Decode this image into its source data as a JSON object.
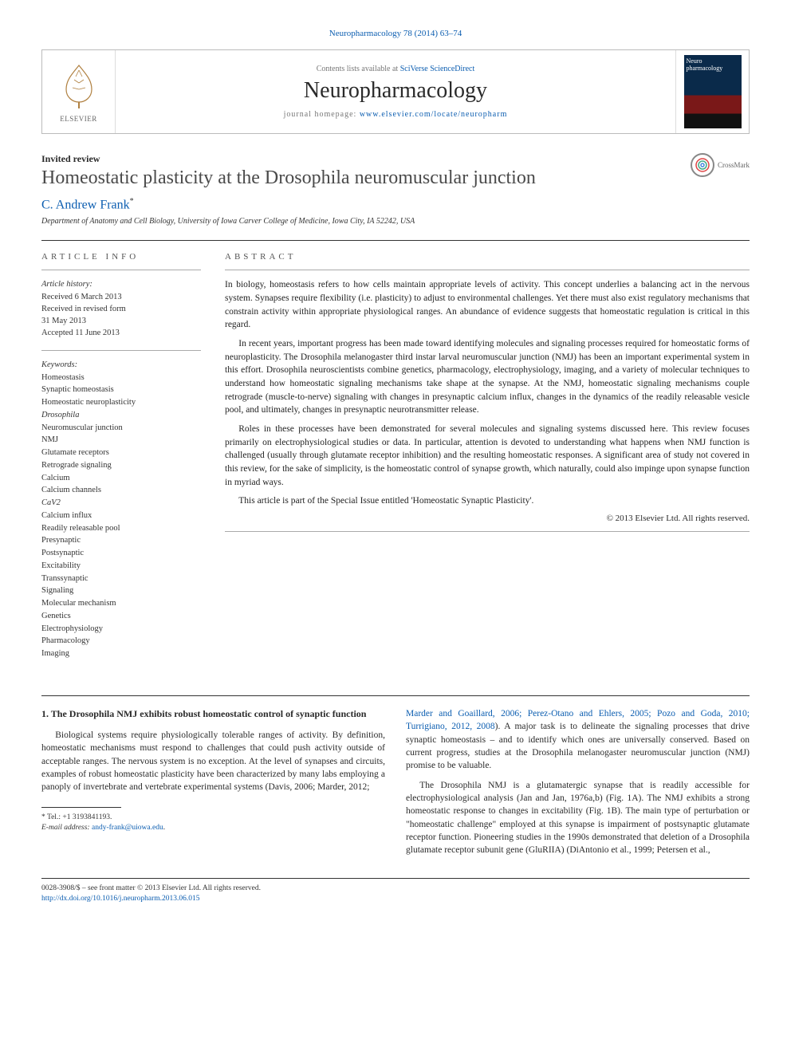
{
  "top_citation": "Neuropharmacology 78 (2014) 63–74",
  "header": {
    "publisher_label": "ELSEVIER",
    "contents_prefix": "Contents lists available at ",
    "contents_link": "SciVerse ScienceDirect",
    "journal_name": "Neuropharmacology",
    "homepage_prefix": "journal homepage: ",
    "homepage_url": "www.elsevier.com/locate/neuropharm",
    "cover_title": "Neuro pharmacology"
  },
  "crossmark": {
    "label": "CrossMark"
  },
  "article": {
    "type": "Invited review",
    "title": "Homeostatic plasticity at the Drosophila neuromuscular junction",
    "author": "C. Andrew Frank",
    "author_marker": "*",
    "affiliation": "Department of Anatomy and Cell Biology, University of Iowa Carver College of Medicine, Iowa City, IA 52242, USA"
  },
  "info": {
    "label": "ARTICLE INFO",
    "history_head": "Article history:",
    "history": [
      "Received 6 March 2013",
      "Received in revised form",
      "31 May 2013",
      "Accepted 11 June 2013"
    ],
    "keywords_head": "Keywords:",
    "keywords": [
      "Homeostasis",
      "Synaptic homeostasis",
      "Homeostatic neuroplasticity",
      "Drosophila",
      "Neuromuscular junction",
      "NMJ",
      "Glutamate receptors",
      "Retrograde signaling",
      "Calcium",
      "Calcium channels",
      "CaV2",
      "Calcium influx",
      "Readily releasable pool",
      "Presynaptic",
      "Postsynaptic",
      "Excitability",
      "Transsynaptic",
      "Signaling",
      "Molecular mechanism",
      "Genetics",
      "Electrophysiology",
      "Pharmacology",
      "Imaging"
    ]
  },
  "abstract": {
    "label": "ABSTRACT",
    "paragraphs": [
      "In biology, homeostasis refers to how cells maintain appropriate levels of activity. This concept underlies a balancing act in the nervous system. Synapses require flexibility (i.e. plasticity) to adjust to environmental challenges. Yet there must also exist regulatory mechanisms that constrain activity within appropriate physiological ranges. An abundance of evidence suggests that homeostatic regulation is critical in this regard.",
      "In recent years, important progress has been made toward identifying molecules and signaling processes required for homeostatic forms of neuroplasticity. The Drosophila melanogaster third instar larval neuromuscular junction (NMJ) has been an important experimental system in this effort. Drosophila neuroscientists combine genetics, pharmacology, electrophysiology, imaging, and a variety of molecular techniques to understand how homeostatic signaling mechanisms take shape at the synapse. At the NMJ, homeostatic signaling mechanisms couple retrograde (muscle-to-nerve) signaling with changes in presynaptic calcium influx, changes in the dynamics of the readily releasable vesicle pool, and ultimately, changes in presynaptic neurotransmitter release.",
      "Roles in these processes have been demonstrated for several molecules and signaling systems discussed here. This review focuses primarily on electrophysiological studies or data. In particular, attention is devoted to understanding what happens when NMJ function is challenged (usually through glutamate receptor inhibition) and the resulting homeostatic responses. A significant area of study not covered in this review, for the sake of simplicity, is the homeostatic control of synapse growth, which naturally, could also impinge upon synapse function in myriad ways.",
      "This article is part of the Special Issue entitled 'Homeostatic Synaptic Plasticity'."
    ],
    "copyright": "© 2013 Elsevier Ltd. All rights reserved."
  },
  "body": {
    "heading": "1. The Drosophila NMJ exhibits robust homeostatic control of synaptic function",
    "left": [
      "Biological systems require physiologically tolerable ranges of activity. By definition, homeostatic mechanisms must respond to challenges that could push activity outside of acceptable ranges. The nervous system is no exception. At the level of synapses and circuits, examples of robust homeostatic plasticity have been characterized by many labs employing a panoply of invertebrate and vertebrate experimental systems (Davis, 2006; Marder, 2012; "
    ],
    "right_links": "Marder and Goaillard, 2006; Perez-Otano and Ehlers, 2005; Pozo and Goda, 2010; Turrigiano, 2012, 2008",
    "right": [
      "). A major task is to delineate the signaling processes that drive synaptic homeostasis – and to identify which ones are universally conserved. Based on current progress, studies at the Drosophila melanogaster neuromuscular junction (NMJ) promise to be valuable.",
      "The Drosophila NMJ is a glutamatergic synapse that is readily accessible for electrophysiological analysis (Jan and Jan, 1976a,b) (Fig. 1A). The NMJ exhibits a strong homeostatic response to changes in excitability (Fig. 1B). The main type of perturbation or \"homeostatic challenge\" employed at this synapse is impairment of postsynaptic glutamate receptor function. Pioneering studies in the 1990s demonstrated that deletion of a Drosophila glutamate receptor subunit gene (GluRIIA) (DiAntonio et al., 1999; Petersen et al.,"
    ]
  },
  "footnotes": {
    "tel_label": "* Tel.: ",
    "tel": "+1 3193841193.",
    "email_label": "E-mail address: ",
    "email": "andy-frank@uiowa.edu"
  },
  "footer": {
    "issn": "0028-3908/$ – see front matter © 2013 Elsevier Ltd. All rights reserved.",
    "doi": "http://dx.doi.org/10.1016/j.neuropharm.2013.06.015"
  },
  "colors": {
    "link": "#0b5db0",
    "text": "#2a2a2a",
    "border": "#bbbbbb"
  }
}
